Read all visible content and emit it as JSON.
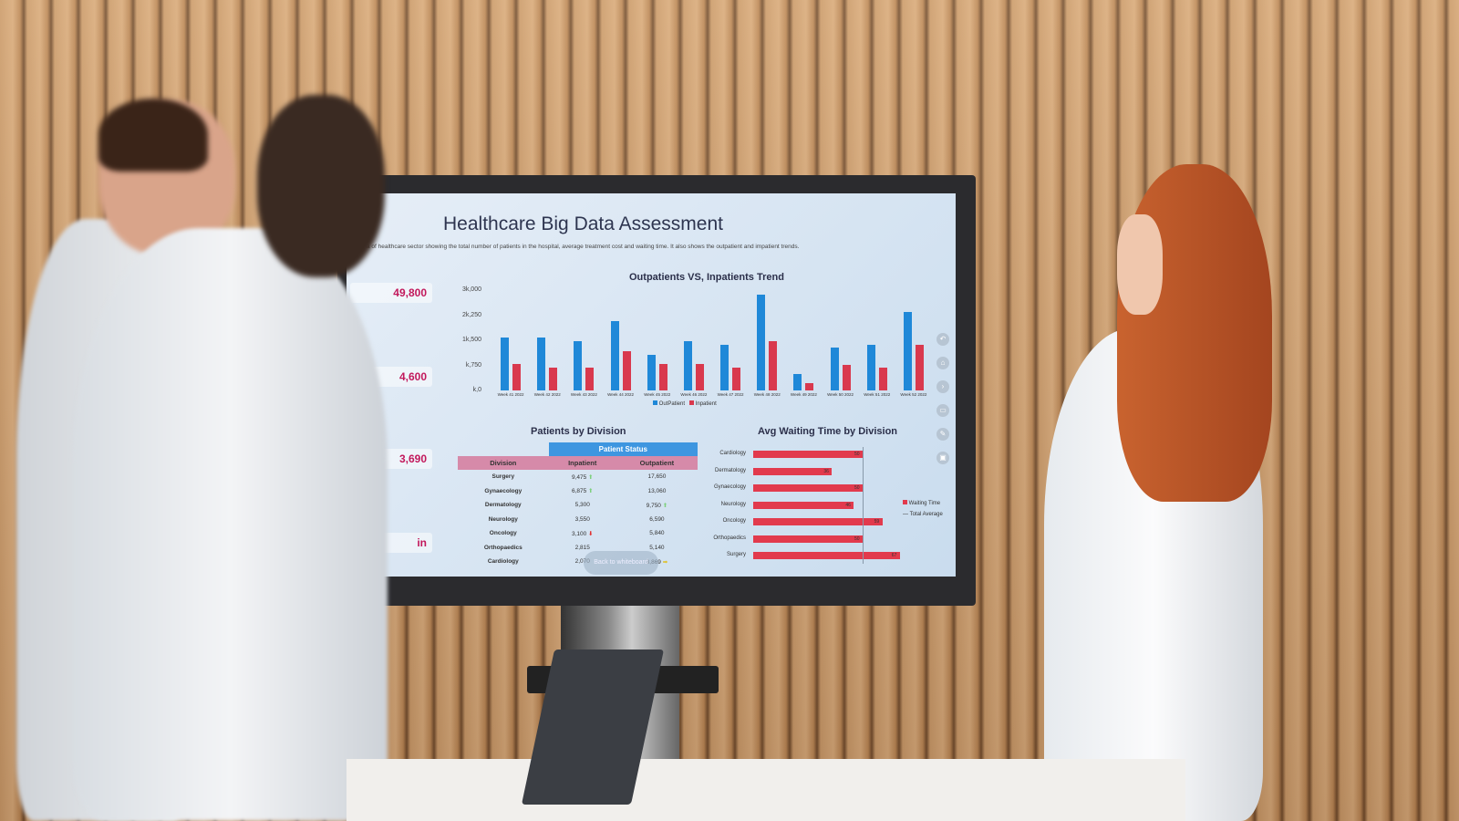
{
  "dashboard": {
    "title": "Healthcare Big Data Assessment",
    "subtitle": "a  of healthcare sector showing the total number of patients in the hospital, average treatment cost and waiting time. It also shows the outpatient and impatient trends.",
    "kpis": [
      "49,800",
      "4,600",
      "3,690",
      "in"
    ],
    "back_button": "Back to whiteboard",
    "side_icons": [
      "back-icon",
      "home-icon",
      "forward-icon",
      "window-icon",
      "pen-icon",
      "save-icon"
    ]
  },
  "chart_data": [
    {
      "type": "bar",
      "title": "Outpatients VS, Inpatients Trend",
      "categories": [
        "Week 41 2022",
        "Week 42 2022",
        "Week 43 2022",
        "Week 44 2022",
        "Week 45 2022",
        "Week 46 2022",
        "Week 47 2022",
        "Week 48 2022",
        "Week 49 2022",
        "Week 50 2022",
        "Week 51 2022",
        "Week 52 2022"
      ],
      "yticks": [
        "3k,000",
        "2k,250",
        "1k,500",
        "k,750",
        "k,0"
      ],
      "ylim": [
        0,
        3000
      ],
      "series": [
        {
          "name": "OutPatient",
          "color": "#1f88d8",
          "values": [
            1590,
            1580,
            1480,
            2080,
            1070,
            1470,
            1370,
            2860,
            480,
            1270,
            1360,
            2340
          ]
        },
        {
          "name": "Inpatient",
          "color": "#d9394e",
          "values": [
            790,
            680,
            680,
            1180,
            780,
            780,
            680,
            1470,
            230,
            770,
            670,
            1360
          ]
        }
      ],
      "legend": "bottom"
    },
    {
      "type": "table",
      "title": "Patients by Division",
      "group_header": "Patient Status",
      "columns": [
        "Division",
        "Inpatient",
        "Outpatient"
      ],
      "rows": [
        {
          "division": "Surgery",
          "inpatient": "9,475",
          "in_trend": "up",
          "outpatient": "17,650",
          "out_trend": ""
        },
        {
          "division": "Gynaecology",
          "inpatient": "6,875",
          "in_trend": "up",
          "outpatient": "13,060",
          "out_trend": ""
        },
        {
          "division": "Dermatology",
          "inpatient": "5,300",
          "in_trend": "",
          "outpatient": "9,750",
          "out_trend": "up"
        },
        {
          "division": "Neurology",
          "inpatient": "3,550",
          "in_trend": "",
          "outpatient": "6,590",
          "out_trend": ""
        },
        {
          "division": "Oncology",
          "inpatient": "3,100",
          "in_trend": "down",
          "outpatient": "5,840",
          "out_trend": ""
        },
        {
          "division": "Orthopaedics",
          "inpatient": "2,815",
          "in_trend": "",
          "outpatient": "5,140",
          "out_trend": ""
        },
        {
          "division": "Cardiology",
          "inpatient": "2,070",
          "in_trend": "",
          "outpatient": "3,869",
          "out_trend": "right"
        }
      ]
    },
    {
      "type": "bar",
      "orientation": "horizontal",
      "title": "Avg Waiting Time by Division",
      "categories": [
        "Cardiology",
        "Dermatology",
        "Gynaecology",
        "Neurology",
        "Oncology",
        "Orthopaedics",
        "Surgery"
      ],
      "series": [
        {
          "name": "Waiting Time",
          "color": "#e23a4d",
          "values": [
            50,
            36,
            50,
            46,
            59,
            50,
            67
          ]
        }
      ],
      "reference_line": {
        "name": "Total Average",
        "value": 50
      },
      "legend": "right"
    }
  ]
}
